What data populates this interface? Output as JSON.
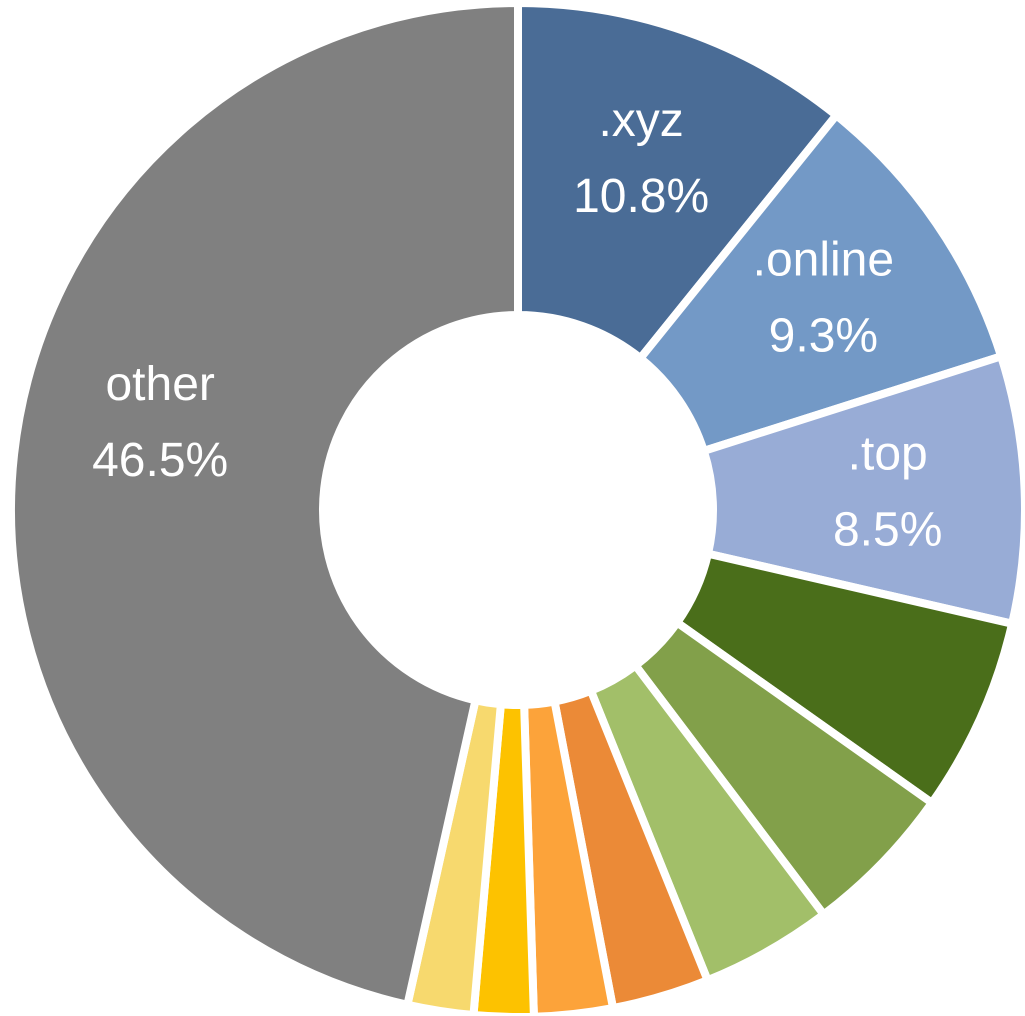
{
  "chart_data": {
    "type": "donut",
    "categories": [
      ".xyz",
      ".online",
      ".top",
      null,
      null,
      null,
      null,
      null,
      null,
      null,
      "other"
    ],
    "values": [
      10.8,
      9.3,
      8.5,
      6.2,
      4.9,
      4.2,
      3.1,
      2.5,
      1.9,
      2.1,
      46.5
    ],
    "value_labels": [
      "10.8%",
      "9.3%",
      "8.5%",
      null,
      null,
      null,
      null,
      null,
      null,
      null,
      "46.5%"
    ],
    "colors": [
      "#4a6c96",
      "#7399c6",
      "#98acd6",
      "#4a6e1a",
      "#82a04a",
      "#a2bf69",
      "#eb8a37",
      "#fca33a",
      "#fdc200",
      "#f7d96e",
      "#808080"
    ]
  }
}
